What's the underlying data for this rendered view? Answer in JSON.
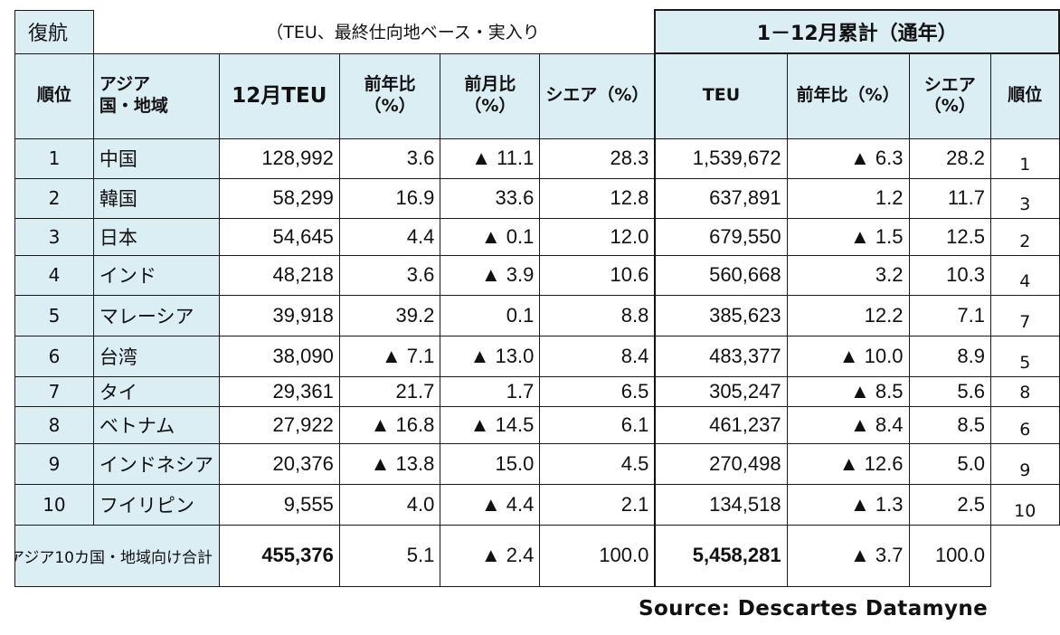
{
  "title": "復航",
  "unit_note": "（TEU、最終仕向地ベース・実入り",
  "annual_header": "1－12月累計（通年）",
  "headers": {
    "rank": "順位",
    "region": "アジア\n国・地域",
    "teu_dec": "12月TEU",
    "yoy": "前年比\n（%）",
    "mom": "前月比\n（%）",
    "share": "シエア（%）",
    "teu": "TEU",
    "yoy_annual": "前年比（%）",
    "share_annual": "シエア\n（%）",
    "rank_annual": "順位"
  },
  "rows": [
    {
      "rank": "1",
      "name": "中国",
      "teu": "128,992",
      "yoy": "3.6",
      "mom": "▲ 11.1",
      "share": "28.3",
      "teu_y": "1,539,672",
      "yoy_y": "▲ 6.3",
      "share_y": "28.2",
      "rank_y": "1"
    },
    {
      "rank": "2",
      "name": "韓国",
      "teu": "58,299",
      "yoy": "16.9",
      "mom": "33.6",
      "share": "12.8",
      "teu_y": "637,891",
      "yoy_y": "1.2",
      "share_y": "11.7",
      "rank_y": "3"
    },
    {
      "rank": "3",
      "name": "日本",
      "teu": "54,645",
      "yoy": "4.4",
      "mom": "▲ 0.1",
      "share": "12.0",
      "teu_y": "679,550",
      "yoy_y": "▲ 1.5",
      "share_y": "12.5",
      "rank_y": "2"
    },
    {
      "rank": "4",
      "name": "インド",
      "teu": "48,218",
      "yoy": "3.6",
      "mom": "▲ 3.9",
      "share": "10.6",
      "teu_y": "560,668",
      "yoy_y": "3.2",
      "share_y": "10.3",
      "rank_y": "4"
    },
    {
      "rank": "5",
      "name": "マレーシア",
      "teu": "39,918",
      "yoy": "39.2",
      "mom": "0.1",
      "share": "8.8",
      "teu_y": "385,623",
      "yoy_y": "12.2",
      "share_y": "7.1",
      "rank_y": "7"
    },
    {
      "rank": "6",
      "name": "台湾",
      "teu": "38,090",
      "yoy": "▲ 7.1",
      "mom": "▲ 13.0",
      "share": "8.4",
      "teu_y": "483,377",
      "yoy_y": "▲ 10.0",
      "share_y": "8.9",
      "rank_y": "5"
    },
    {
      "rank": "7",
      "name": "タイ",
      "teu": "29,361",
      "yoy": "21.7",
      "mom": "1.7",
      "share": "6.5",
      "teu_y": "305,247",
      "yoy_y": "▲ 8.5",
      "share_y": "5.6",
      "rank_y": "8"
    },
    {
      "rank": "8",
      "name": "ベトナム",
      "teu": "27,922",
      "yoy": "▲ 16.8",
      "mom": "▲ 14.5",
      "share": "6.1",
      "teu_y": "461,237",
      "yoy_y": "▲ 8.4",
      "share_y": "8.5",
      "rank_y": "6"
    },
    {
      "rank": "9",
      "name": "インドネシア",
      "teu": "20,376",
      "yoy": "▲ 13.8",
      "mom": "15.0",
      "share": "4.5",
      "teu_y": "270,498",
      "yoy_y": "▲ 12.6",
      "share_y": "5.0",
      "rank_y": "9"
    },
    {
      "rank": "10",
      "name": "フイリピン",
      "teu": "9,555",
      "yoy": "4.0",
      "mom": "▲ 4.4",
      "share": "2.1",
      "teu_y": "134,518",
      "yoy_y": "▲ 1.3",
      "share_y": "2.5",
      "rank_y": "10"
    }
  ],
  "total": {
    "label": "アジア10カ国・地域向け合計",
    "teu": "455,376",
    "yoy": "5.1",
    "mom": "▲ 2.4",
    "share": "100.0",
    "teu_y": "5,458,281",
    "yoy_y": "▲ 3.7",
    "share_y": "100.0"
  },
  "source": "Source: Descartes Datamyne",
  "colors": {
    "header_fill": "#dbeef4",
    "border": "#1a1a1a",
    "text": "#111111"
  }
}
